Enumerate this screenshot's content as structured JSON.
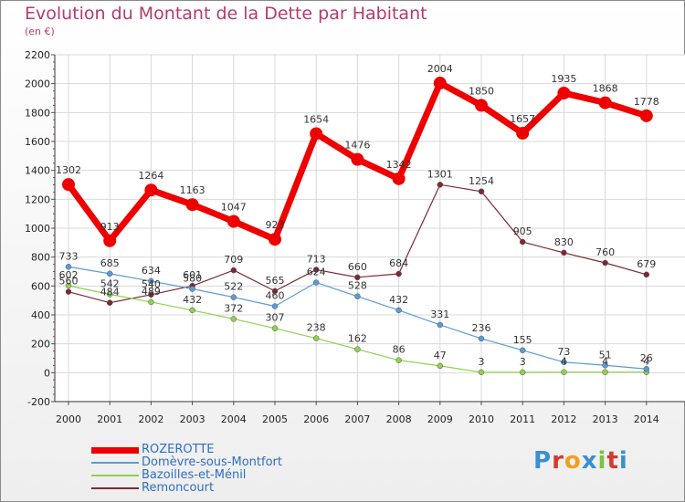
{
  "title": "Evolution du Montant de la Dette par Habitant",
  "subtitle": "(en €)",
  "logo": {
    "text": "Proxiti",
    "letter_colors": [
      "#3b8fd0",
      "#d43a2f",
      "#f0a020",
      "#3b8fd0",
      "#7cc243",
      "#d43a2f",
      "#3b8fd0"
    ]
  },
  "chart_data": {
    "type": "line",
    "x": [
      "2000",
      "2001",
      "2002",
      "2003",
      "2004",
      "2005",
      "2006",
      "2007",
      "2008",
      "2009",
      "2010",
      "2011",
      "2012",
      "2013",
      "2014"
    ],
    "ylim": [
      -200,
      2200
    ],
    "yticks": [
      -200,
      0,
      200,
      400,
      600,
      800,
      1000,
      1200,
      1400,
      1600,
      1800,
      2000,
      2200
    ],
    "grid": true,
    "legend": "bottom-left",
    "series": [
      {
        "name": "ROZEROTTE",
        "color": "#ee0000",
        "width": 7,
        "dot": 7,
        "values": [
          1302,
          913,
          1264,
          1163,
          1047,
          923,
          1654,
          1476,
          1342,
          2004,
          1850,
          1657,
          1935,
          1868,
          1778
        ],
        "labels": [
          "1302",
          "913",
          "1264",
          "1163",
          "1047",
          "923",
          "1654",
          "1476",
          "1342",
          "2004",
          "1850",
          "1657",
          "1935",
          "1868",
          "1778"
        ]
      },
      {
        "name": "Domèvre-sous-Montfort",
        "color": "#5b9bd5",
        "width": 1.2,
        "dot": 3,
        "values": [
          733,
          685,
          634,
          580,
          522,
          460,
          624,
          528,
          432,
          331,
          236,
          155,
          73,
          51,
          26
        ],
        "labels": [
          "733",
          "685",
          "634",
          "580",
          "522",
          "460",
          "624",
          "528",
          "432",
          "331",
          "236",
          "155",
          "73",
          "51",
          "26"
        ]
      },
      {
        "name": "Bazoilles-et-Ménil",
        "color": "#90d050",
        "width": 1.2,
        "dot": 3,
        "values": [
          602,
          542,
          489,
          432,
          372,
          307,
          238,
          162,
          86,
          47,
          3,
          3,
          4,
          4,
          4
        ],
        "labels": [
          "602",
          "542",
          "489",
          "432",
          "372",
          "307",
          "238",
          "162",
          "86",
          "47",
          "3",
          "3",
          "4",
          "4",
          "4"
        ]
      },
      {
        "name": "Remoncourt",
        "color": "#7a2a35",
        "width": 1.2,
        "dot": 3,
        "values": [
          560,
          484,
          540,
          601,
          709,
          565,
          713,
          660,
          684,
          1301,
          1254,
          905,
          830,
          760,
          679
        ],
        "labels": [
          "560",
          "484",
          "540",
          "601",
          "709",
          "565",
          "713",
          "660",
          "684",
          "1301",
          "1254",
          "905",
          "830",
          "760",
          "679"
        ]
      }
    ]
  }
}
